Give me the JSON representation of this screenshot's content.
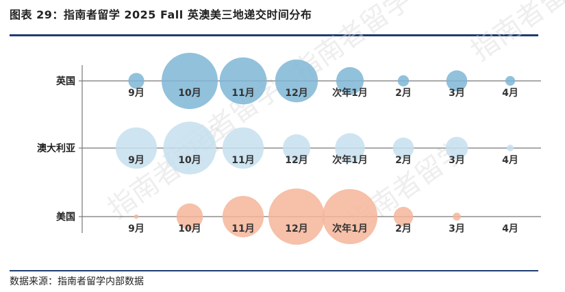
{
  "title": "图表 29：指南者留学 2025 Fall 英澳美三地递交时间分布",
  "source": "数据来源：指南者留学内部数据",
  "watermark": "指南者留学",
  "chart_data": {
    "type": "bubble",
    "xlabel": "",
    "ylabel": "",
    "grid": false,
    "legend": "none",
    "size_scale_note": "",
    "categories": [
      "9月",
      "10月",
      "11月",
      "12月",
      "次年1月",
      "2月",
      "3月",
      "4月"
    ],
    "series": [
      {
        "name": "英国",
        "color": "#7fb6d6",
        "values": [
          8,
          100,
          70,
          58,
          24,
          4,
          14,
          3
        ]
      },
      {
        "name": "澳大利亚",
        "color": "#c6dfee",
        "values": [
          54,
          88,
          54,
          24,
          28,
          14,
          16,
          1.5
        ]
      },
      {
        "name": "美国",
        "color": "#f4b59a",
        "values": [
          0.6,
          22,
          54,
          100,
          96,
          12,
          2,
          0
        ]
      }
    ]
  }
}
